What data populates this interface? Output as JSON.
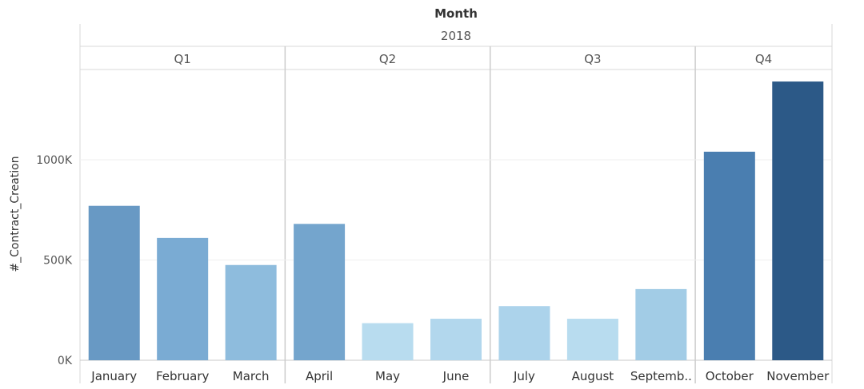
{
  "chart_data": {
    "type": "bar",
    "title": "Month",
    "column_header": "2018",
    "ylabel": "#_Contract_Creation",
    "ylim": [
      0,
      1450000
    ],
    "yticks": [
      0,
      500000,
      1000000
    ],
    "ytick_labels": [
      "0K",
      "500K",
      "1000K"
    ],
    "grid": true,
    "groups": [
      {
        "label": "Q1",
        "categories": [
          "January",
          "February",
          "March"
        ]
      },
      {
        "label": "Q2",
        "categories": [
          "April",
          "May",
          "June"
        ]
      },
      {
        "label": "Q3",
        "categories": [
          "July",
          "August",
          "Septemb.."
        ]
      },
      {
        "label": "Q4",
        "categories": [
          "October",
          "November"
        ]
      }
    ],
    "categories": [
      "January",
      "February",
      "March",
      "April",
      "May",
      "June",
      "July",
      "August",
      "Septemb..",
      "October",
      "November"
    ],
    "values": [
      770000,
      610000,
      475000,
      680000,
      185000,
      207000,
      270000,
      207000,
      355000,
      1040000,
      1390000
    ],
    "colors": [
      "#6899c4",
      "#7aabd3",
      "#8ebcdd",
      "#74a5cd",
      "#b8dcef",
      "#b2d7ed",
      "#acd3eb",
      "#b8dcef",
      "#a2cce6",
      "#4a7eb0",
      "#2c5987"
    ]
  }
}
